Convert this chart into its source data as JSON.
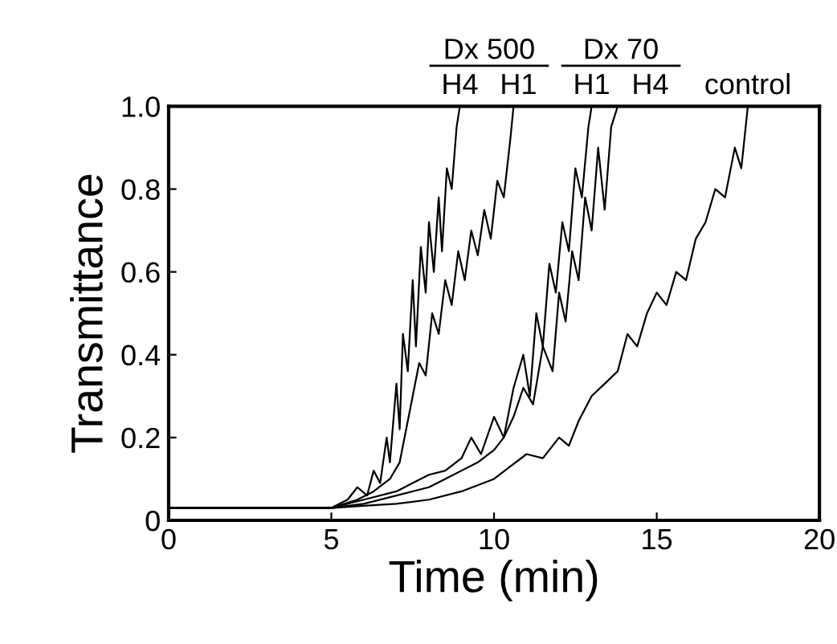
{
  "chart_data": {
    "type": "line",
    "xlabel": "Time (min)",
    "ylabel": "Transmittance",
    "xlim": [
      0,
      20
    ],
    "ylim": [
      0,
      1
    ],
    "xticks": [
      0,
      5,
      10,
      15,
      20
    ],
    "yticks": [
      0,
      0.2,
      0.4,
      0.6,
      0.8,
      {
        "value": 1,
        "label": "1.0"
      }
    ],
    "grid": false,
    "legend": "top",
    "marker": "none",
    "line_style": "solid",
    "annotations": [
      "Dx 500",
      "Dx 70"
    ],
    "series": [
      {
        "name": "H4",
        "color": "#000000",
        "x": [
          0,
          5,
          5.5,
          5.8,
          6.1,
          6.3,
          6.5,
          6.7,
          6.8,
          7.0,
          7.1,
          7.2,
          7.35,
          7.5,
          7.6,
          7.75,
          7.9,
          8.0,
          8.15,
          8.3,
          8.4,
          8.55,
          8.7,
          8.85,
          8.95
        ],
        "values": [
          0.03,
          0.03,
          0.05,
          0.08,
          0.06,
          0.12,
          0.09,
          0.2,
          0.14,
          0.33,
          0.22,
          0.45,
          0.36,
          0.58,
          0.42,
          0.66,
          0.55,
          0.72,
          0.6,
          0.78,
          0.65,
          0.85,
          0.8,
          0.95,
          1.0
        ]
      },
      {
        "name": "H1",
        "color": "#000000",
        "x": [
          0,
          5,
          5.8,
          6.3,
          6.8,
          7.1,
          7.3,
          7.5,
          7.7,
          7.9,
          8.1,
          8.3,
          8.5,
          8.7,
          8.9,
          9.1,
          9.3,
          9.5,
          9.7,
          9.9,
          10.1,
          10.3,
          10.5,
          10.6
        ],
        "values": [
          0.03,
          0.03,
          0.05,
          0.07,
          0.1,
          0.14,
          0.22,
          0.3,
          0.38,
          0.35,
          0.5,
          0.45,
          0.58,
          0.52,
          0.65,
          0.58,
          0.7,
          0.64,
          0.75,
          0.68,
          0.82,
          0.78,
          0.92,
          1.0
        ]
      },
      {
        "name": "H1",
        "color": "#000000",
        "x": [
          0,
          5,
          6,
          7,
          7.5,
          8,
          8.5,
          9,
          9.3,
          9.6,
          10,
          10.3,
          10.6,
          10.9,
          11.1,
          11.3,
          11.5,
          11.7,
          11.9,
          12.1,
          12.3,
          12.5,
          12.7,
          12.9,
          13.0
        ],
        "values": [
          0.03,
          0.03,
          0.05,
          0.07,
          0.09,
          0.11,
          0.12,
          0.15,
          0.2,
          0.16,
          0.25,
          0.2,
          0.32,
          0.4,
          0.3,
          0.5,
          0.42,
          0.62,
          0.55,
          0.72,
          0.65,
          0.85,
          0.78,
          0.95,
          1.0
        ]
      },
      {
        "name": "H4",
        "color": "#000000",
        "x": [
          0,
          5,
          6,
          7,
          8,
          8.5,
          9,
          9.5,
          10,
          10.3,
          10.6,
          10.9,
          11.2,
          11.5,
          11.8,
          12.0,
          12.2,
          12.4,
          12.6,
          12.8,
          13.0,
          13.2,
          13.4,
          13.6,
          13.8
        ],
        "values": [
          0.03,
          0.03,
          0.04,
          0.06,
          0.08,
          0.1,
          0.12,
          0.14,
          0.17,
          0.2,
          0.25,
          0.32,
          0.28,
          0.42,
          0.36,
          0.55,
          0.48,
          0.65,
          0.58,
          0.78,
          0.7,
          0.9,
          0.75,
          0.95,
          1.0
        ]
      },
      {
        "name": "control",
        "color": "#000000",
        "x": [
          0,
          5,
          6,
          7,
          8,
          9,
          10,
          10.5,
          11,
          11.5,
          12,
          12.3,
          12.6,
          13,
          13.4,
          13.8,
          14.1,
          14.4,
          14.7,
          15,
          15.3,
          15.6,
          15.9,
          16.2,
          16.5,
          16.8,
          17.1,
          17.4,
          17.6,
          17.8
        ],
        "values": [
          0.03,
          0.03,
          0.035,
          0.04,
          0.05,
          0.07,
          0.1,
          0.13,
          0.16,
          0.15,
          0.2,
          0.18,
          0.24,
          0.3,
          0.33,
          0.36,
          0.45,
          0.42,
          0.5,
          0.55,
          0.52,
          0.6,
          0.58,
          0.68,
          0.72,
          0.8,
          0.78,
          0.9,
          0.85,
          1.0
        ]
      }
    ]
  }
}
